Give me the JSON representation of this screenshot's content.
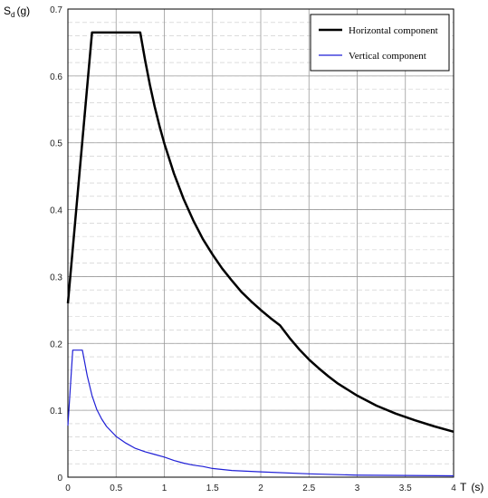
{
  "chart_data": {
    "type": "line",
    "title": "",
    "xlabel": "T",
    "xlabel_unit": "(s)",
    "ylabel": "S",
    "ylabel_sub": "d",
    "ylabel_unit": "(g)",
    "xlim": [
      0,
      4
    ],
    "ylim": [
      0,
      0.7
    ],
    "x_ticks": [
      0,
      0.5,
      1,
      1.5,
      2,
      2.5,
      3,
      3.5,
      4
    ],
    "x_tick_labels": [
      "0",
      "0.5",
      "1",
      "1.5",
      "2",
      "2.5",
      "3",
      "3.5",
      "4"
    ],
    "y_ticks": [
      0,
      0.1,
      0.2,
      0.3,
      0.4,
      0.5,
      0.6,
      0.7
    ],
    "y_tick_labels": [
      "0",
      "0.1",
      "0.2",
      "0.3",
      "0.4",
      "0.5",
      "0.6",
      "0.7"
    ],
    "grid": true,
    "legend_position": "top-right",
    "series": [
      {
        "name": "Horizontal component",
        "color": "#000000",
        "points": [
          [
            0,
            0.26
          ],
          [
            0.25,
            0.665
          ],
          [
            0.75,
            0.665
          ],
          [
            0.8,
            0.624
          ],
          [
            0.85,
            0.587
          ],
          [
            0.9,
            0.554
          ],
          [
            0.95,
            0.525
          ],
          [
            1.0,
            0.499
          ],
          [
            1.1,
            0.454
          ],
          [
            1.2,
            0.416
          ],
          [
            1.3,
            0.384
          ],
          [
            1.4,
            0.356
          ],
          [
            1.5,
            0.333
          ],
          [
            1.6,
            0.312
          ],
          [
            1.7,
            0.294
          ],
          [
            1.8,
            0.277
          ],
          [
            1.9,
            0.263
          ],
          [
            2.0,
            0.25
          ],
          [
            2.1,
            0.238
          ],
          [
            2.2,
            0.227
          ],
          [
            2.3,
            0.208
          ],
          [
            2.4,
            0.191
          ],
          [
            2.5,
            0.176
          ],
          [
            2.6,
            0.163
          ],
          [
            2.7,
            0.151
          ],
          [
            2.8,
            0.14
          ],
          [
            2.9,
            0.131
          ],
          [
            3.0,
            0.122
          ],
          [
            3.2,
            0.107
          ],
          [
            3.4,
            0.095
          ],
          [
            3.6,
            0.085
          ],
          [
            3.8,
            0.076
          ],
          [
            4.0,
            0.068
          ]
        ]
      },
      {
        "name": "Vertical component",
        "color": "#1f1fd6",
        "points": [
          [
            0,
            0.077
          ],
          [
            0.05,
            0.19
          ],
          [
            0.15,
            0.19
          ],
          [
            0.2,
            0.152
          ],
          [
            0.25,
            0.122
          ],
          [
            0.3,
            0.101
          ],
          [
            0.35,
            0.087
          ],
          [
            0.4,
            0.076
          ],
          [
            0.5,
            0.061
          ],
          [
            0.6,
            0.051
          ],
          [
            0.7,
            0.043
          ],
          [
            0.8,
            0.038
          ],
          [
            0.9,
            0.034
          ],
          [
            1.0,
            0.03
          ],
          [
            1.1,
            0.025
          ],
          [
            1.2,
            0.021
          ],
          [
            1.3,
            0.018
          ],
          [
            1.4,
            0.016
          ],
          [
            1.5,
            0.013
          ],
          [
            1.7,
            0.01
          ],
          [
            2.0,
            0.008
          ],
          [
            2.5,
            0.005
          ],
          [
            3.0,
            0.003
          ],
          [
            3.5,
            0.0025
          ],
          [
            4.0,
            0.002
          ]
        ]
      }
    ]
  }
}
